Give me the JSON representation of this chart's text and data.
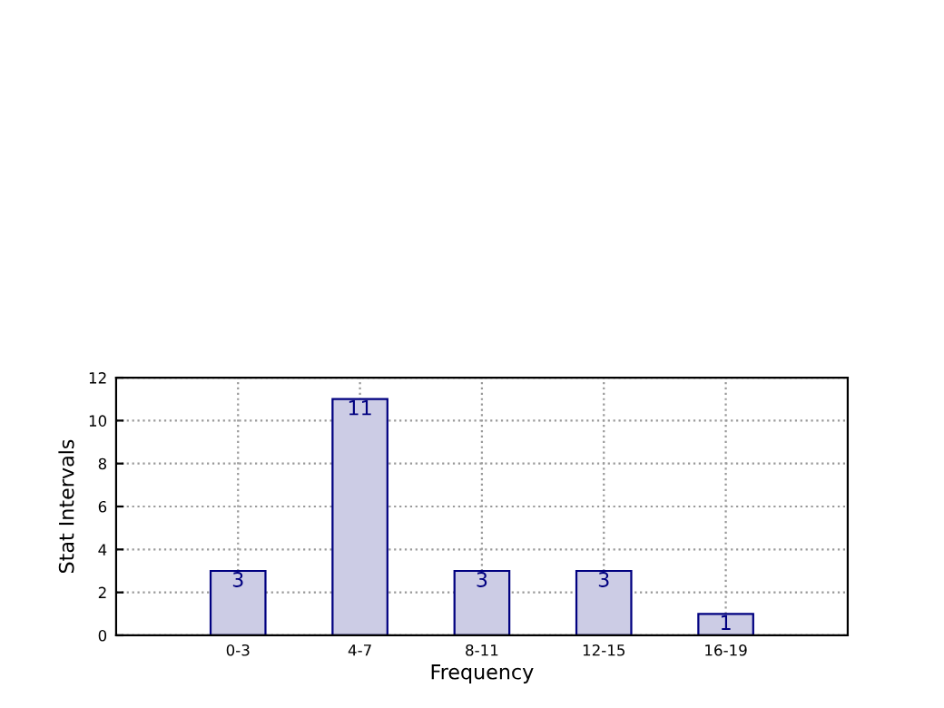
{
  "chart_data": {
    "type": "bar",
    "xlabel": "Frequency",
    "ylabel": "Stat Intervals",
    "categories": [
      "0-3",
      "4-7",
      "8-11",
      "12-15",
      "16-19"
    ],
    "series": [
      {
        "color": "#ccccE5",
        "values": [
          3,
          11,
          3,
          3,
          1
        ]
      }
    ],
    "ylim": [
      0,
      12
    ],
    "yticks": [
      0,
      2,
      4,
      6,
      8,
      10,
      12
    ],
    "grid": true,
    "data_labels": true,
    "legend": false
  }
}
